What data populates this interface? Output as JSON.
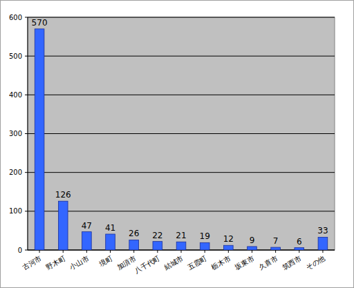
{
  "chart_data": {
    "type": "bar",
    "categories": [
      "古河市",
      "野木町",
      "小山市",
      "境町",
      "加須市",
      "八千代町",
      "結城市",
      "五霞町",
      "栃木市",
      "坂東市",
      "久喜市",
      "筑西市",
      "その他"
    ],
    "values": [
      570,
      126,
      47,
      41,
      26,
      22,
      21,
      19,
      12,
      9,
      7,
      6,
      33
    ],
    "color": "#3366ff",
    "ylim": [
      0,
      600
    ],
    "yticks": [
      0,
      100,
      200,
      300,
      400,
      500,
      600
    ],
    "grid": true,
    "data_labels": true
  }
}
